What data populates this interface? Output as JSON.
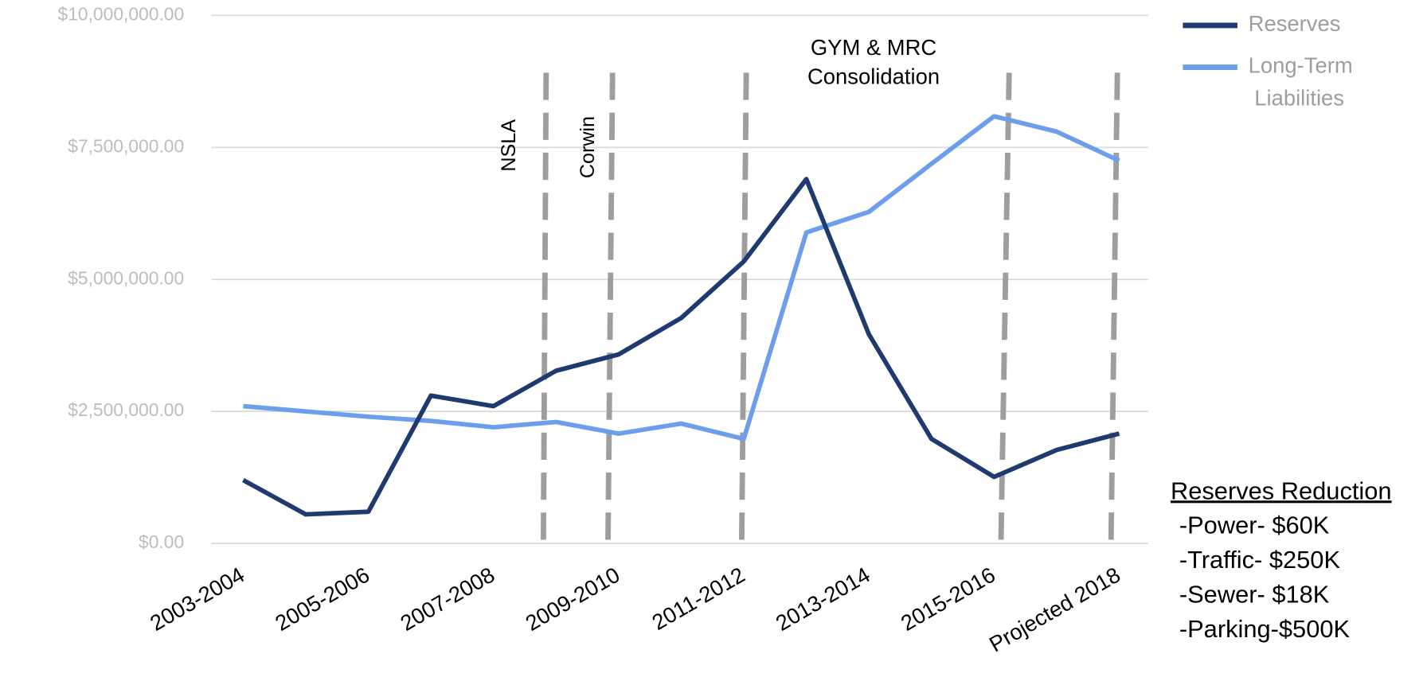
{
  "chart_data": {
    "type": "line",
    "categories": [
      "2003-2004",
      null,
      "2005-2006",
      null,
      "2007-2008",
      null,
      "2009-2010",
      null,
      "2011-2012",
      null,
      "2013-2014",
      null,
      "2015-2016",
      null,
      "Projected 2018"
    ],
    "series": [
      {
        "name": "Reserves",
        "color": "#1f3a6e",
        "values": [
          1200000,
          550000,
          600000,
          2800000,
          2600000,
          3270000,
          3580000,
          4270000,
          5340000,
          6900000,
          3960000,
          1980000,
          1260000,
          1770000,
          2080000
        ]
      },
      {
        "name": "Long-Term Liabilities",
        "color": "#6d9eeb",
        "values": [
          2600000,
          2500000,
          2400000,
          2320000,
          2200000,
          2300000,
          2080000,
          2270000,
          1980000,
          5890000,
          6280000,
          7190000,
          8090000,
          7800000,
          7250000
        ]
      }
    ],
    "ylim": [
      0,
      10000000
    ],
    "yticks": [
      {
        "value": 0,
        "label": "$0.00"
      },
      {
        "value": 2500000,
        "label": "$2,500,000.00"
      },
      {
        "value": 5000000,
        "label": "$5,000,000.00"
      },
      {
        "value": 7500000,
        "label": "$7,500,000.00"
      },
      {
        "value": 10000000,
        "label": "$10,000,000.00"
      }
    ],
    "grid": true,
    "legend": "top-right",
    "annotations": [
      "NSLA",
      "Corwin",
      "GYM & MRC",
      "Consolidation"
    ],
    "note": {
      "title": "Reserves Reduction",
      "lines": [
        "-Power- $60K",
        "-Traffic- $250K",
        "-Sewer- $18K",
        "-Parking-$500K"
      ]
    }
  }
}
